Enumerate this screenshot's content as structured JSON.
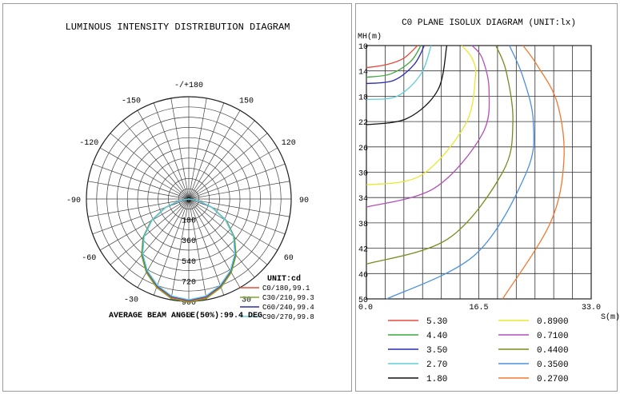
{
  "chart_data": [
    {
      "type": "polar",
      "title": "LUMINOUS INTENSITY DISTRIBUTION DIAGRAM",
      "angle_labels": [
        {
          "angle": 180,
          "label": "-/+180"
        },
        {
          "angle": -150,
          "label": "-150"
        },
        {
          "angle": 150,
          "label": "150"
        },
        {
          "angle": -120,
          "label": "-120"
        },
        {
          "angle": 120,
          "label": "120"
        },
        {
          "angle": -90,
          "label": "-90"
        },
        {
          "angle": 90,
          "label": "90"
        },
        {
          "angle": -60,
          "label": "-60"
        },
        {
          "angle": 60,
          "label": "60"
        },
        {
          "angle": -30,
          "label": "-30"
        },
        {
          "angle": 30,
          "label": "30"
        },
        {
          "angle": 0,
          "label": "0"
        }
      ],
      "radial_ticks": [
        "0",
        "180",
        "360",
        "540",
        "720",
        "900"
      ],
      "rlim": [
        0,
        900
      ],
      "unit_label": "UNIT:cd",
      "series": [
        {
          "name": "C0/180,99.1",
          "color": "#e8483c",
          "scale": 1.0
        },
        {
          "name": "C30/210,99.3",
          "color": "#78a82c",
          "scale": 1.01
        },
        {
          "name": "C60/240,99.4",
          "color": "#2a2ab8",
          "scale": 0.99
        },
        {
          "name": "C90/270,99.8",
          "color": "#5fd0d8",
          "scale": 0.985
        }
      ],
      "intensity_curve": {
        "angles": [
          0,
          10,
          20,
          30,
          40,
          50,
          60,
          70,
          80,
          90
        ],
        "values": [
          900,
          880,
          820,
          740,
          640,
          520,
          380,
          220,
          80,
          0
        ]
      },
      "footer": "AVERAGE BEAM ANGLE(50%):99.4 DEG"
    },
    {
      "type": "line",
      "title": "C0 PLANE ISOLUX DIAGRAM (UNIT:lx)",
      "ylabel": "MH(m)",
      "xlabel": "S(m)",
      "x_ticks": [
        "0.0",
        "16.5",
        "33.0"
      ],
      "y_ticks": [
        "10",
        "14",
        "18",
        "22",
        "26",
        "30",
        "34",
        "38",
        "42",
        "46",
        "50"
      ],
      "xlim": [
        0,
        33
      ],
      "ylim": [
        10,
        50
      ],
      "series": [
        {
          "name": "5.30",
          "color": "#e8483c",
          "points": [
            [
              0,
              13.5
            ],
            [
              3,
              13
            ],
            [
              5.5,
              12
            ],
            [
              7.5,
              10
            ]
          ]
        },
        {
          "name": "4.40",
          "color": "#3aa83a",
          "points": [
            [
              0,
              15
            ],
            [
              3.5,
              14.5
            ],
            [
              6.5,
              12.5
            ],
            [
              8,
              10
            ]
          ]
        },
        {
          "name": "3.50",
          "color": "#2a2ab8",
          "points": [
            [
              0,
              16
            ],
            [
              4,
              15.5
            ],
            [
              7,
              13
            ],
            [
              8.5,
              10
            ]
          ]
        },
        {
          "name": "2.70",
          "color": "#5fd0d8",
          "points": [
            [
              0,
              18.5
            ],
            [
              4.5,
              18
            ],
            [
              8,
              14.5
            ],
            [
              9.5,
              10
            ]
          ]
        },
        {
          "name": "1.80",
          "color": "#111111",
          "points": [
            [
              0,
              22.5
            ],
            [
              6,
              21.5
            ],
            [
              10.5,
              17
            ],
            [
              11.8,
              10
            ]
          ]
        },
        {
          "name": "0.8900",
          "color": "#e8e830",
          "points": [
            [
              0,
              32
            ],
            [
              8,
              30.5
            ],
            [
              14.5,
              22.5
            ],
            [
              16,
              15
            ],
            [
              15.5,
              12
            ],
            [
              14,
              10
            ]
          ]
        },
        {
          "name": "0.7100",
          "color": "#b050b8",
          "points": [
            [
              0,
              35.5
            ],
            [
              10,
              32.5
            ],
            [
              17,
              24
            ],
            [
              18,
              17
            ],
            [
              17,
              12
            ],
            [
              15.5,
              10
            ]
          ]
        },
        {
          "name": "0.4400",
          "color": "#7a8a1c",
          "points": [
            [
              0,
              44.5
            ],
            [
              12,
              40.5
            ],
            [
              20,
              30
            ],
            [
              21.5,
              22
            ],
            [
              20.5,
              14
            ],
            [
              19,
              10
            ]
          ]
        },
        {
          "name": "0.3500",
          "color": "#4a90e0",
          "points": [
            [
              3,
              50
            ],
            [
              16,
              43
            ],
            [
              23.5,
              30
            ],
            [
              24.5,
              22
            ],
            [
              23,
              15
            ],
            [
              21,
              10
            ]
          ]
        },
        {
          "name": "0.2700",
          "color": "#f07830",
          "points": [
            [
              20,
              50
            ],
            [
              27,
              38
            ],
            [
              29,
              28
            ],
            [
              28,
              19
            ],
            [
              25,
              13
            ],
            [
              23,
              10
            ]
          ]
        }
      ]
    }
  ]
}
